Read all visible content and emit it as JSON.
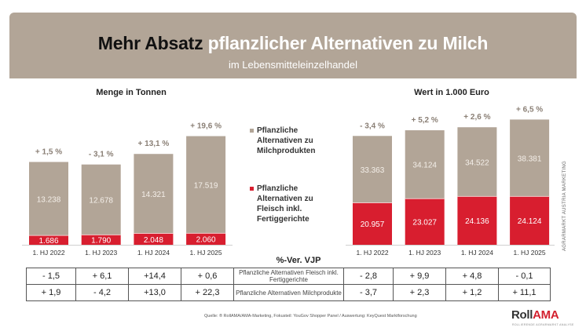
{
  "header": {
    "title_dark": "Mehr Absatz",
    "title_light": "pflanzlicher Alternativen zu Milch",
    "subtitle": "im Lebensmitteleinzelhandel"
  },
  "colors": {
    "banner": "#b2a597",
    "milk_series": "#b2a597",
    "meat_series": "#d81e2f",
    "growth_label": "#8a7f75"
  },
  "legend": {
    "milk": "Pflanzliche Alternativen zu Milchprodukten",
    "meat": "Pflanzliche Alternativen zu Fleisch inkl. Fertiggerichte"
  },
  "chart_data": [
    {
      "type": "bar",
      "stacked": true,
      "title": "Menge in Tonnen",
      "categories": [
        "1. HJ 2022",
        "1. HJ 2023",
        "1. HJ 2024",
        "1. HJ 2025"
      ],
      "series": [
        {
          "name": "Pflanzliche Alternativen zu Fleisch inkl. Fertiggerichte",
          "values": [
            1686,
            1790,
            2048,
            2060
          ],
          "labels": [
            "1.686",
            "1.790",
            "2.048",
            "2.060"
          ]
        },
        {
          "name": "Pflanzliche Alternativen zu Milchprodukten",
          "values": [
            13238,
            12678,
            14321,
            17519
          ],
          "labels": [
            "13.238",
            "12.678",
            "14.321",
            "17.519"
          ]
        }
      ],
      "growth_labels": [
        "+ 1,5 %",
        "- 3,1 %",
        "+ 13,1 %",
        "+ 19,6 %"
      ],
      "ylim": [
        0,
        20500
      ]
    },
    {
      "type": "bar",
      "stacked": true,
      "title": "Wert in 1.000 Euro",
      "categories": [
        "1. HJ 2022",
        "1. HJ 2023",
        "1. HJ 2024",
        "1. HJ 2025"
      ],
      "series": [
        {
          "name": "Pflanzliche Alternativen zu Fleisch inkl. Fertiggerichte",
          "values": [
            20957,
            23027,
            24136,
            24124
          ],
          "labels": [
            "20.957",
            "23.027",
            "24.136",
            "24.124"
          ]
        },
        {
          "name": "Pflanzliche Alternativen zu Milchprodukten",
          "values": [
            33363,
            34124,
            34522,
            38381
          ],
          "labels": [
            "33.363",
            "34.124",
            "34.522",
            "38.381"
          ]
        }
      ],
      "growth_labels": [
        "- 3,4 %",
        "+ 5,2 %",
        "+ 2,6 %",
        "+ 6,5 %"
      ],
      "ylim": [
        0,
        65000
      ]
    }
  ],
  "vjp": {
    "title": "%-Ver. VJP",
    "rows": [
      {
        "label": "Pflanzliche Alternativen Fleisch inkl. Fertiggerichte",
        "menge": [
          "- 1,5",
          "+ 6,1",
          "+14,4",
          "+ 0,6"
        ],
        "wert": [
          "- 2,8",
          "+ 9,9",
          "+ 4,8",
          "- 0,1"
        ]
      },
      {
        "label": "Pflanzliche Alternativen Milchprodukte",
        "menge": [
          "+ 1,9",
          "- 4,2",
          "+13,0",
          "+ 22,3"
        ],
        "wert": [
          "- 3,7",
          "+ 2,3",
          "+ 1,2",
          "+ 11,1"
        ]
      }
    ]
  },
  "side_text": "AGRARMARKT AUSTRIA MARKETING",
  "footer": {
    "source": "Quelle: ® RollAMA/AMA-Marketing, Fokusteil: YouGov Shopper Panel / Auswertung: KeyQuest Marktforschung",
    "logo_part1": "Roll",
    "logo_part2": "AMA",
    "logo_sub": "ROLLIERENDE AGRARMARKT ANALYSE"
  }
}
